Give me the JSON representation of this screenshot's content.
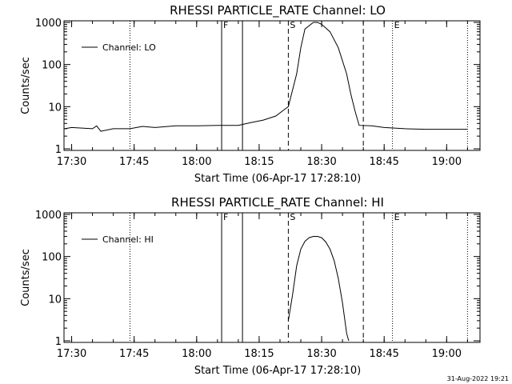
{
  "footer": {
    "date_stamp": "31-Aug-2022 19:21"
  },
  "chart_data": [
    {
      "type": "line",
      "title": "RHESSI PARTICLE_RATE Channel: LO",
      "xlabel": "Start Time (06-Apr-17 17:28:10)",
      "ylabel": "Counts/sec",
      "x_ticks": [
        "17:30",
        "17:45",
        "18:00",
        "18:15",
        "18:30",
        "18:45",
        "19:00"
      ],
      "y_ticks": [
        "1",
        "10",
        "100",
        "1000"
      ],
      "y_scale": "log",
      "ylim": [
        1,
        1000
      ],
      "xlim": [
        "17:28:10",
        "19:08:00"
      ],
      "legend": {
        "entries": [
          "Channel: LO"
        ],
        "placement": "top-left"
      },
      "markers": [
        {
          "label": "F",
          "time": "18:06",
          "style": "solid"
        },
        {
          "label": "",
          "time": "18:11",
          "style": "solid"
        },
        {
          "label": "S",
          "time": "18:22",
          "style": "dashed"
        },
        {
          "label": "",
          "time": "18:40",
          "style": "dashed"
        },
        {
          "label": "E",
          "time": "18:47",
          "style": "dotted"
        },
        {
          "label": "",
          "time": "17:44",
          "style": "dotted"
        },
        {
          "label": "",
          "time": "19:05",
          "style": "dotted"
        }
      ],
      "series": [
        {
          "name": "Channel: LO",
          "points": [
            [
              "17:28:20",
              3.0
            ],
            [
              "17:30:00",
              3.2
            ],
            [
              "17:35:00",
              3.0
            ],
            [
              "17:36:00",
              3.5
            ],
            [
              "17:37:00",
              2.6
            ],
            [
              "17:40:00",
              3.0
            ],
            [
              "17:44:00",
              3.0
            ],
            [
              "17:47:00",
              3.4
            ],
            [
              "17:50:00",
              3.2
            ],
            [
              "17:55:00",
              3.5
            ],
            [
              "18:00:00",
              3.5
            ],
            [
              "18:05:00",
              3.6
            ],
            [
              "18:10:00",
              3.6
            ],
            [
              "18:13:00",
              4.2
            ],
            [
              "18:16:00",
              4.8
            ],
            [
              "18:19:00",
              6.0
            ],
            [
              "18:21:00",
              8.5
            ],
            [
              "18:22:00",
              10.0
            ],
            [
              "18:24:00",
              60
            ],
            [
              "18:25:00",
              250
            ],
            [
              "18:26:00",
              700
            ],
            [
              "18:28:00",
              1000
            ],
            [
              "18:29:00",
              1000
            ],
            [
              "18:30:00",
              900
            ],
            [
              "18:32:00",
              600
            ],
            [
              "18:34:00",
              250
            ],
            [
              "18:36:00",
              60
            ],
            [
              "18:37:00",
              20
            ],
            [
              "18:38:00",
              8
            ],
            [
              "18:39:00",
              3.6
            ],
            [
              "18:42:00",
              3.5
            ],
            [
              "18:45:00",
              3.2
            ],
            [
              "18:50:00",
              3.0
            ],
            [
              "18:55:00",
              2.9
            ],
            [
              "19:00:00",
              2.9
            ],
            [
              "19:05:00",
              2.9
            ]
          ]
        }
      ]
    },
    {
      "type": "line",
      "title": "RHESSI PARTICLE_RATE Channel: HI",
      "xlabel": "Start Time (06-Apr-17 17:28:10)",
      "ylabel": "Counts/sec",
      "x_ticks": [
        "17:30",
        "17:45",
        "18:00",
        "18:15",
        "18:30",
        "18:45",
        "19:00"
      ],
      "y_ticks": [
        "1",
        "10",
        "100",
        "1000"
      ],
      "y_scale": "log",
      "ylim": [
        1,
        1000
      ],
      "xlim": [
        "17:28:10",
        "19:08:00"
      ],
      "legend": {
        "entries": [
          "Channel: HI"
        ],
        "placement": "top-left"
      },
      "markers": [
        {
          "label": "F",
          "time": "18:06",
          "style": "solid"
        },
        {
          "label": "",
          "time": "18:11",
          "style": "solid"
        },
        {
          "label": "S",
          "time": "18:22",
          "style": "dashed"
        },
        {
          "label": "",
          "time": "18:40",
          "style": "dashed"
        },
        {
          "label": "E",
          "time": "18:47",
          "style": "dotted"
        },
        {
          "label": "",
          "time": "17:44",
          "style": "dotted"
        },
        {
          "label": "",
          "time": "19:05",
          "style": "dotted"
        }
      ],
      "series": [
        {
          "name": "Channel: HI",
          "points": [
            [
              "18:22:00",
              3.0
            ],
            [
              "18:23:00",
              12
            ],
            [
              "18:24:00",
              60
            ],
            [
              "18:25:00",
              150
            ],
            [
              "18:26:00",
              230
            ],
            [
              "18:27:00",
              280
            ],
            [
              "18:28:00",
              300
            ],
            [
              "18:29:00",
              300
            ],
            [
              "18:30:00",
              280
            ],
            [
              "18:31:00",
              220
            ],
            [
              "18:32:00",
              150
            ],
            [
              "18:33:00",
              80
            ],
            [
              "18:34:00",
              30
            ],
            [
              "18:35:00",
              8
            ],
            [
              "18:36:00",
              1.5
            ],
            [
              "18:36:30",
              1.0
            ]
          ]
        }
      ]
    }
  ]
}
